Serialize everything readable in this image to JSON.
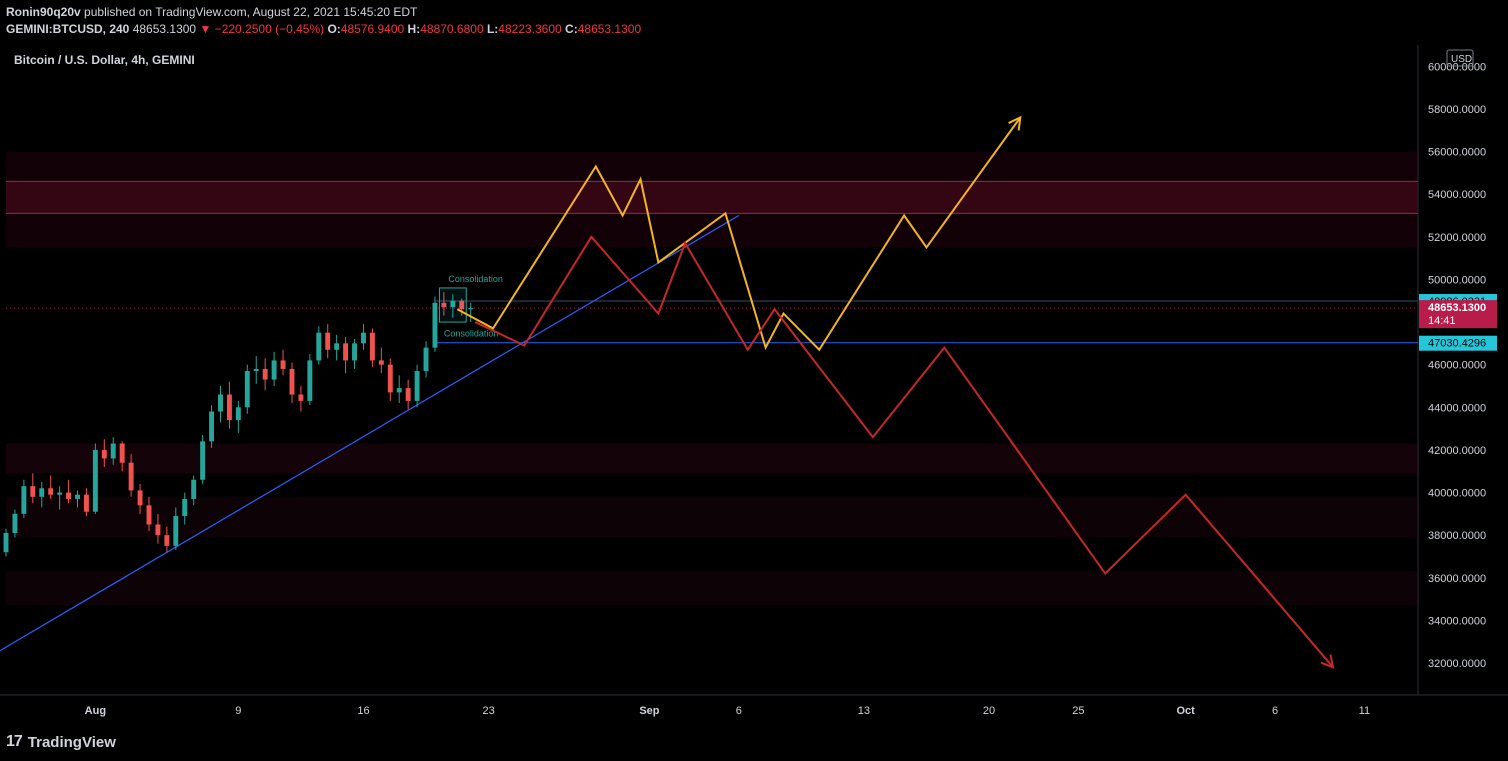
{
  "header": {
    "publisher": "Ronin90q20v",
    "published_text": "published on TradingView.com, August 22, 2021 15:45:20 EDT",
    "symbol": "GEMINI:BTCUSD, 240",
    "last": "48653.1300",
    "change_arrow": "▼",
    "change": "−220.2500 (−0.45%)",
    "o_label": "O:",
    "o_value": "48576.9400",
    "h_label": "H:",
    "h_value": "48870.6800",
    "l_label": "L:",
    "l_value": "48223.3600",
    "c_label": "C:",
    "c_value": "48653.1300"
  },
  "chart_data": {
    "type": "candlestick",
    "title": "Bitcoin / U.S. Dollar, 4h, GEMINI",
    "currency": "USD",
    "ylim": [
      30500,
      61000
    ],
    "y_ticks": [
      {
        "value": 60000,
        "label": "60000.0000"
      },
      {
        "value": 58000,
        "label": "58000.0000"
      },
      {
        "value": 56000,
        "label": "56000.0000"
      },
      {
        "value": 54000,
        "label": "54000.0000"
      },
      {
        "value": 52000,
        "label": "52000.0000"
      },
      {
        "value": 50000,
        "label": "50000.0000"
      },
      {
        "value": 46000,
        "label": "46000.0000"
      },
      {
        "value": 44000,
        "label": "44000.0000"
      },
      {
        "value": 42000,
        "label": "42000.0000"
      },
      {
        "value": 40000,
        "label": "40000.0000"
      },
      {
        "value": 38000,
        "label": "38000.0000"
      },
      {
        "value": 36000,
        "label": "36000.0000"
      },
      {
        "value": 34000,
        "label": "34000.0000"
      },
      {
        "value": 32000,
        "label": "32000.0000"
      }
    ],
    "x_start": "2021-07-27",
    "x_end": "2021-10-14",
    "x_ticks": [
      {
        "date": "2021-08-01",
        "label": "Aug"
      },
      {
        "date": "2021-08-09",
        "label": "9"
      },
      {
        "date": "2021-08-16",
        "label": "16"
      },
      {
        "date": "2021-08-23",
        "label": "23"
      },
      {
        "date": "2021-09-01",
        "label": "Sep"
      },
      {
        "date": "2021-09-06",
        "label": "6"
      },
      {
        "date": "2021-09-13",
        "label": "13"
      },
      {
        "date": "2021-09-20",
        "label": "20"
      },
      {
        "date": "2021-09-25",
        "label": "25"
      },
      {
        "date": "2021-10-01",
        "label": "Oct"
      },
      {
        "date": "2021-10-06",
        "label": "6"
      },
      {
        "date": "2021-10-11",
        "label": "11"
      }
    ],
    "price_labels": [
      {
        "value": 48986.0231,
        "label": "48986.0231",
        "color": "#26c6da"
      },
      {
        "value": 48653.13,
        "label": "48653.1300",
        "sub": "14:41",
        "color": "#b71c4a"
      },
      {
        "value": 47030.4296,
        "label": "47030.4296",
        "color": "#26c6da"
      }
    ],
    "zones": [
      {
        "from": 54600,
        "to": 53100,
        "color": "#5a0d24",
        "opacity": 0.55
      },
      {
        "from": 56000,
        "to": 51500,
        "color": "#3a0816",
        "opacity": 0.3
      },
      {
        "from": 42300,
        "to": 40900,
        "color": "#3a0816",
        "opacity": 0.35
      },
      {
        "from": 39800,
        "to": 37900,
        "color": "#2a0610",
        "opacity": 0.3
      },
      {
        "from": 36300,
        "to": 34700,
        "color": "#2a0610",
        "opacity": 0.3
      }
    ],
    "levels": [
      {
        "value": 48986.0231,
        "color": "#3a4a6a"
      },
      {
        "value": 47030.4296,
        "color": "#2962ff"
      }
    ],
    "annotations": [
      {
        "text": "Consolidation",
        "date": "2021-08-20 18:00",
        "value": 49600
      },
      {
        "text": "Consolidation",
        "date": "2021-08-20 12:00",
        "value": 47500
      }
    ],
    "candles": [
      {
        "date": "2021-07-27 00:00",
        "o": 37200,
        "h": 38300,
        "l": 37000,
        "c": 38100
      },
      {
        "date": "2021-07-27 12:00",
        "o": 38100,
        "h": 39200,
        "l": 37900,
        "c": 39000
      },
      {
        "date": "2021-07-28 00:00",
        "o": 39000,
        "h": 40600,
        "l": 38800,
        "c": 40300
      },
      {
        "date": "2021-07-28 12:00",
        "o": 40300,
        "h": 40900,
        "l": 39500,
        "c": 39800
      },
      {
        "date": "2021-07-29 00:00",
        "o": 39800,
        "h": 40500,
        "l": 39300,
        "c": 40200
      },
      {
        "date": "2021-07-29 12:00",
        "o": 40200,
        "h": 40800,
        "l": 39700,
        "c": 39900
      },
      {
        "date": "2021-07-30 00:00",
        "o": 39900,
        "h": 40300,
        "l": 39200,
        "c": 40000
      },
      {
        "date": "2021-07-30 12:00",
        "o": 40000,
        "h": 40600,
        "l": 39500,
        "c": 39700
      },
      {
        "date": "2021-07-31 00:00",
        "o": 39700,
        "h": 40100,
        "l": 39300,
        "c": 39900
      },
      {
        "date": "2021-07-31 12:00",
        "o": 39900,
        "h": 40200,
        "l": 38900,
        "c": 39100
      },
      {
        "date": "2021-08-01 00:00",
        "o": 39100,
        "h": 42300,
        "l": 39000,
        "c": 42000
      },
      {
        "date": "2021-08-01 12:00",
        "o": 42000,
        "h": 42500,
        "l": 41200,
        "c": 41600
      },
      {
        "date": "2021-08-02 00:00",
        "o": 41600,
        "h": 42600,
        "l": 41300,
        "c": 42300
      },
      {
        "date": "2021-08-02 12:00",
        "o": 42300,
        "h": 42400,
        "l": 41000,
        "c": 41400
      },
      {
        "date": "2021-08-03 00:00",
        "o": 41400,
        "h": 41800,
        "l": 39800,
        "c": 40100
      },
      {
        "date": "2021-08-03 12:00",
        "o": 40100,
        "h": 40400,
        "l": 39000,
        "c": 39400
      },
      {
        "date": "2021-08-04 00:00",
        "o": 39400,
        "h": 39800,
        "l": 38200,
        "c": 38500
      },
      {
        "date": "2021-08-04 12:00",
        "o": 38500,
        "h": 39000,
        "l": 37600,
        "c": 38000
      },
      {
        "date": "2021-08-05 00:00",
        "o": 38000,
        "h": 38400,
        "l": 37200,
        "c": 37500
      },
      {
        "date": "2021-08-05 12:00",
        "o": 37500,
        "h": 39300,
        "l": 37300,
        "c": 38900
      },
      {
        "date": "2021-08-06 00:00",
        "o": 38900,
        "h": 40000,
        "l": 38500,
        "c": 39700
      },
      {
        "date": "2021-08-06 12:00",
        "o": 39700,
        "h": 40800,
        "l": 39400,
        "c": 40600
      },
      {
        "date": "2021-08-07 00:00",
        "o": 40600,
        "h": 42700,
        "l": 40400,
        "c": 42400
      },
      {
        "date": "2021-08-07 12:00",
        "o": 42400,
        "h": 44100,
        "l": 42100,
        "c": 43800
      },
      {
        "date": "2021-08-08 00:00",
        "o": 43800,
        "h": 45000,
        "l": 43300,
        "c": 44600
      },
      {
        "date": "2021-08-08 12:00",
        "o": 44600,
        "h": 45200,
        "l": 43000,
        "c": 43400
      },
      {
        "date": "2021-08-09 00:00",
        "o": 43400,
        "h": 44300,
        "l": 42800,
        "c": 44000
      },
      {
        "date": "2021-08-09 12:00",
        "o": 44000,
        "h": 46000,
        "l": 43700,
        "c": 45700
      },
      {
        "date": "2021-08-10 00:00",
        "o": 45700,
        "h": 46400,
        "l": 45100,
        "c": 45800
      },
      {
        "date": "2021-08-10 12:00",
        "o": 45800,
        "h": 46300,
        "l": 44800,
        "c": 45300
      },
      {
        "date": "2021-08-11 00:00",
        "o": 45300,
        "h": 46600,
        "l": 45000,
        "c": 46200
      },
      {
        "date": "2021-08-11 12:00",
        "o": 46200,
        "h": 46700,
        "l": 45500,
        "c": 45800
      },
      {
        "date": "2021-08-12 00:00",
        "o": 45800,
        "h": 46100,
        "l": 44200,
        "c": 44600
      },
      {
        "date": "2021-08-12 12:00",
        "o": 44600,
        "h": 45000,
        "l": 43800,
        "c": 44300
      },
      {
        "date": "2021-08-13 00:00",
        "o": 44300,
        "h": 46500,
        "l": 44100,
        "c": 46200
      },
      {
        "date": "2021-08-13 12:00",
        "o": 46200,
        "h": 47800,
        "l": 46000,
        "c": 47500
      },
      {
        "date": "2021-08-14 00:00",
        "o": 47500,
        "h": 47900,
        "l": 46300,
        "c": 46700
      },
      {
        "date": "2021-08-14 12:00",
        "o": 46700,
        "h": 47400,
        "l": 46200,
        "c": 47000
      },
      {
        "date": "2021-08-15 00:00",
        "o": 47000,
        "h": 47300,
        "l": 45600,
        "c": 46200
      },
      {
        "date": "2021-08-15 12:00",
        "o": 46200,
        "h": 47200,
        "l": 45800,
        "c": 47000
      },
      {
        "date": "2021-08-16 00:00",
        "o": 47000,
        "h": 47900,
        "l": 46700,
        "c": 47500
      },
      {
        "date": "2021-08-16 12:00",
        "o": 47500,
        "h": 47700,
        "l": 45900,
        "c": 46200
      },
      {
        "date": "2021-08-17 00:00",
        "o": 46200,
        "h": 46800,
        "l": 45600,
        "c": 46000
      },
      {
        "date": "2021-08-17 12:00",
        "o": 46000,
        "h": 46300,
        "l": 44300,
        "c": 44700
      },
      {
        "date": "2021-08-18 00:00",
        "o": 44700,
        "h": 45500,
        "l": 44200,
        "c": 44900
      },
      {
        "date": "2021-08-18 12:00",
        "o": 44900,
        "h": 45300,
        "l": 43900,
        "c": 44300
      },
      {
        "date": "2021-08-19 00:00",
        "o": 44300,
        "h": 46000,
        "l": 44000,
        "c": 45700
      },
      {
        "date": "2021-08-19 12:00",
        "o": 45700,
        "h": 47100,
        "l": 45400,
        "c": 46800
      },
      {
        "date": "2021-08-20 00:00",
        "o": 46800,
        "h": 49200,
        "l": 46600,
        "c": 48900
      },
      {
        "date": "2021-08-20 12:00",
        "o": 48900,
        "h": 49400,
        "l": 48300,
        "c": 48700
      },
      {
        "date": "2021-08-21 00:00",
        "o": 48700,
        "h": 49300,
        "l": 48200,
        "c": 49000
      },
      {
        "date": "2021-08-21 12:00",
        "o": 49000,
        "h": 49100,
        "l": 48300,
        "c": 48600
      },
      {
        "date": "2021-08-22 00:00",
        "o": 48600,
        "h": 48900,
        "l": 48000,
        "c": 48653
      }
    ],
    "trendline": {
      "points": [
        [
          "2021-07-26 12:00",
          32500
        ],
        [
          "2021-09-06 00:00",
          53000
        ]
      ],
      "color": "#2962ff"
    },
    "scenarios": [
      {
        "color": "#f2b521",
        "points": [
          [
            "2021-08-21 06:00",
            48600
          ],
          [
            "2021-08-23 06:00",
            47700
          ],
          [
            "2021-08-29 00:00",
            55300
          ],
          [
            "2021-08-30 12:00",
            53000
          ],
          [
            "2021-08-31 12:00",
            54700
          ],
          [
            "2021-09-01 12:00",
            50800
          ],
          [
            "2021-09-05 06:00",
            53100
          ],
          [
            "2021-09-07 12:00",
            46800
          ],
          [
            "2021-09-08 12:00",
            48400
          ],
          [
            "2021-09-10 12:00",
            46700
          ],
          [
            "2021-09-15 06:00",
            53000
          ],
          [
            "2021-09-16 12:00",
            51500
          ],
          [
            "2021-09-21 18:00",
            57600
          ]
        ],
        "arrow": true
      },
      {
        "color": "#c62828",
        "points": [
          [
            "2021-08-22 06:00",
            48000
          ],
          [
            "2021-08-25 00:00",
            46900
          ],
          [
            "2021-08-28 18:00",
            52000
          ],
          [
            "2021-09-01 12:00",
            48400
          ],
          [
            "2021-09-03 00:00",
            51700
          ],
          [
            "2021-09-06 12:00",
            46700
          ],
          [
            "2021-09-08 00:00",
            48600
          ],
          [
            "2021-09-13 12:00",
            42600
          ],
          [
            "2021-09-17 12:00",
            46800
          ],
          [
            "2021-09-26 12:00",
            36200
          ],
          [
            "2021-10-01 00:00",
            39900
          ],
          [
            "2021-10-09 06:00",
            31800
          ]
        ],
        "arrow": true
      }
    ]
  },
  "footer": {
    "logo": "TradingView"
  }
}
